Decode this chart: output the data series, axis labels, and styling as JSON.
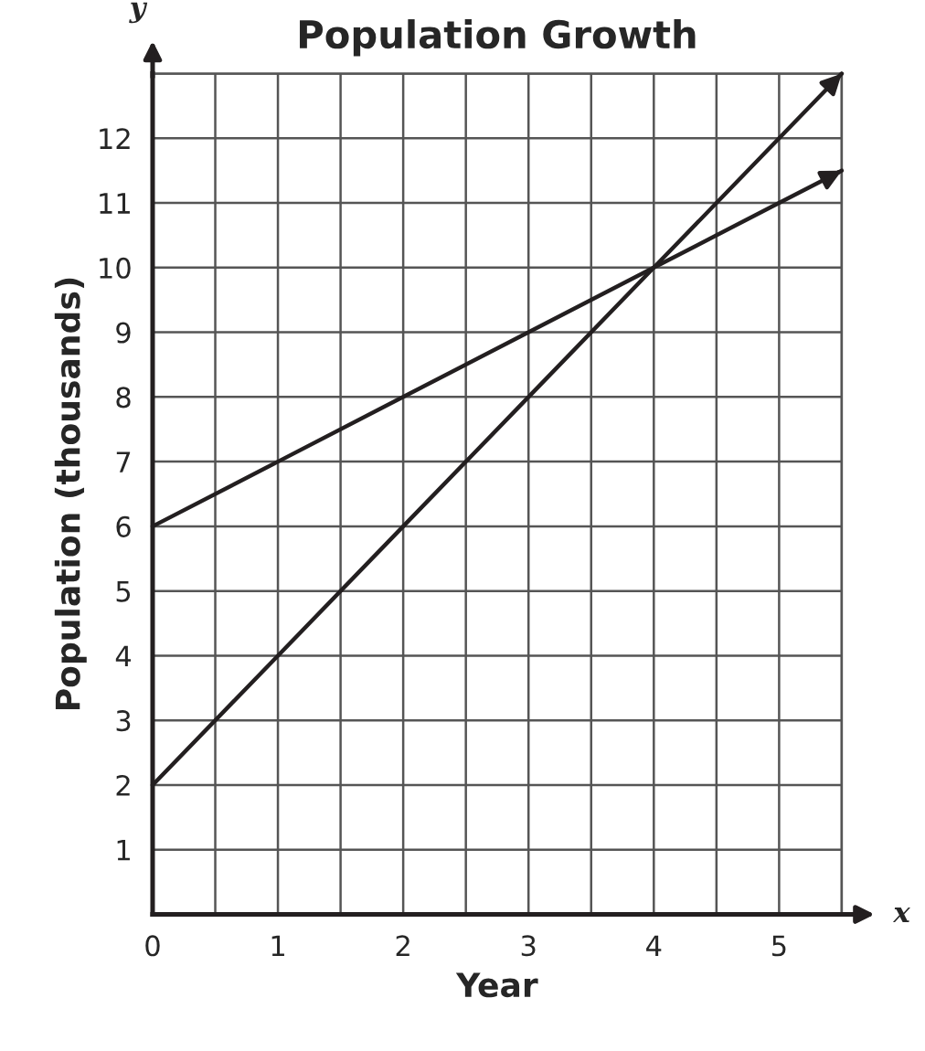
{
  "chart_data": {
    "type": "line",
    "title": "Population Growth",
    "xlabel": "Year",
    "ylabel": "Population (thousands)",
    "annotations": [
      "x",
      "y"
    ],
    "series": [
      {
        "color": "#231f20",
        "x": [
          0,
          1,
          2,
          3,
          4,
          5,
          5.5
        ],
        "values": [
          2,
          4,
          6,
          8,
          10,
          12,
          13
        ]
      },
      {
        "color": "#231f20",
        "x": [
          0,
          1,
          2,
          3,
          4,
          5,
          5.5
        ],
        "values": [
          6,
          7,
          8,
          9,
          10,
          11,
          11.5
        ]
      }
    ],
    "xlim": [
      0,
      5.5
    ],
    "ylim": [
      0,
      13
    ],
    "xticks": [
      0,
      {
        "value": 0.5,
        "label": null
      },
      1,
      {
        "value": 1.5,
        "label": null
      },
      2,
      {
        "value": 2.5,
        "label": null
      },
      3,
      {
        "value": 3.5,
        "label": null
      },
      4,
      {
        "value": 4.5,
        "label": null
      },
      5,
      {
        "value": 5.5,
        "label": null
      }
    ],
    "yticks": [
      {
        "value": 0,
        "label": null
      },
      1,
      2,
      3,
      4,
      5,
      6,
      7,
      8,
      9,
      10,
      11,
      12,
      {
        "value": 13,
        "label": null
      }
    ],
    "grid": true,
    "marker": "none",
    "line_style": "solid"
  }
}
